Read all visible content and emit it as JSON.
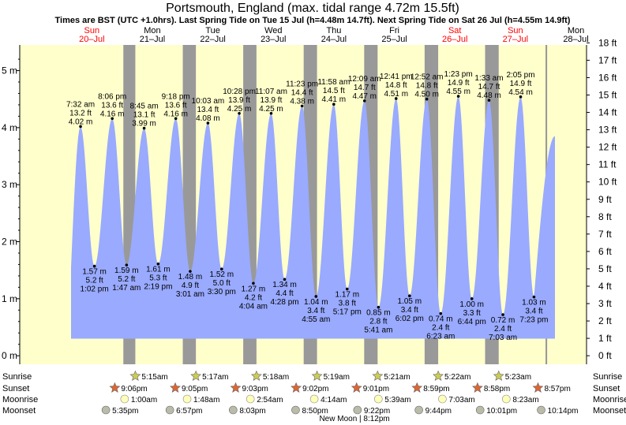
{
  "chart_data": {
    "type": "area",
    "title": "Portsmouth, England (max. tidal range 4.72m 15.5ft)",
    "subtitle": "Times are BST (UTC +1.0hrs). Last Spring Tide on Tue 15 Jul (h=4.48m 14.7ft). Next Spring Tide on Sat 26 Jul (h=4.55m 14.9ft)",
    "ylabel_left_unit": "m",
    "ylabel_right_unit": "ft",
    "ylim_m": [
      -0.15,
      5.45
    ],
    "y_ticks_m": [
      "0 m",
      "1 m",
      "2 m",
      "3 m",
      "4 m",
      "5 m"
    ],
    "y_ticks_ft": [
      "0 ft",
      "1 ft",
      "2 ft",
      "3 ft",
      "4 ft",
      "5 ft",
      "6 ft",
      "7 ft",
      "8 ft",
      "9 ft",
      "10 ft",
      "11 ft",
      "12 ft",
      "13 ft",
      "14 ft",
      "15 ft",
      "16 ft",
      "17 ft",
      "18 ft"
    ],
    "days": [
      {
        "dow": "Sun",
        "date": "20–Jul"
      },
      {
        "dow": "Mon",
        "date": "21–Jul"
      },
      {
        "dow": "Tue",
        "date": "22–Jul"
      },
      {
        "dow": "Wed",
        "date": "23–Jul"
      },
      {
        "dow": "Thu",
        "date": "24–Jul"
      },
      {
        "dow": "Fri",
        "date": "25–Jul"
      },
      {
        "dow": "Sat",
        "date": "26–Jul"
      },
      {
        "dow": "Sun",
        "date": "27–Jul"
      },
      {
        "dow": "Mon",
        "date": "28–Jul"
      }
    ],
    "start_level_m": 1.55,
    "end_level_m": 3.85,
    "extremes": [
      {
        "type": "high",
        "day": 0,
        "hour": 7.53,
        "m": 4.02,
        "time": "7:32 am",
        "h_m": "4.02 m",
        "h_ft": "13.2 ft"
      },
      {
        "type": "low",
        "day": 0,
        "hour": 13.03,
        "m": 1.57,
        "time": "1:02 pm",
        "h_m": "1.57 m",
        "h_ft": "5.2 ft"
      },
      {
        "type": "high",
        "day": 0,
        "hour": 20.1,
        "m": 4.16,
        "time": "8:06 pm",
        "h_m": "4.16 m",
        "h_ft": "13.6 ft"
      },
      {
        "type": "low",
        "day": 1,
        "hour": 1.78,
        "m": 1.59,
        "time": "1:47 am",
        "h_m": "1.59 m",
        "h_ft": "5.2 ft"
      },
      {
        "type": "high",
        "day": 1,
        "hour": 8.75,
        "m": 3.99,
        "time": "8:45 am",
        "h_m": "3.99 m",
        "h_ft": "13.1 ft"
      },
      {
        "type": "low",
        "day": 1,
        "hour": 14.32,
        "m": 1.61,
        "time": "2:19 pm",
        "h_m": "1.61 m",
        "h_ft": "5.3 ft"
      },
      {
        "type": "high",
        "day": 1,
        "hour": 21.3,
        "m": 4.16,
        "time": "9:18 pm",
        "h_m": "4.16 m",
        "h_ft": "13.6 ft"
      },
      {
        "type": "low",
        "day": 2,
        "hour": 3.02,
        "m": 1.48,
        "time": "3:01 am",
        "h_m": "1.48 m",
        "h_ft": "4.9 ft"
      },
      {
        "type": "high",
        "day": 2,
        "hour": 10.05,
        "m": 4.08,
        "time": "10:03 am",
        "h_m": "4.08 m",
        "h_ft": "13.4 ft"
      },
      {
        "type": "low",
        "day": 2,
        "hour": 15.5,
        "m": 1.52,
        "time": "3:30 pm",
        "h_m": "1.52 m",
        "h_ft": "5.0 ft"
      },
      {
        "type": "high",
        "day": 2,
        "hour": 22.47,
        "m": 4.25,
        "time": "10:28 pm",
        "h_m": "4.25 m",
        "h_ft": "13.9 ft"
      },
      {
        "type": "low",
        "day": 3,
        "hour": 4.07,
        "m": 1.27,
        "time": "4:04 am",
        "h_m": "1.27 m",
        "h_ft": "4.2 ft"
      },
      {
        "type": "high",
        "day": 3,
        "hour": 11.12,
        "m": 4.25,
        "time": "11:07 am",
        "h_m": "4.25 m",
        "h_ft": "13.9 ft"
      },
      {
        "type": "low",
        "day": 3,
        "hour": 16.47,
        "m": 1.34,
        "time": "4:28 pm",
        "h_m": "1.34 m",
        "h_ft": "4.4 ft"
      },
      {
        "type": "high",
        "day": 3,
        "hour": 23.38,
        "m": 4.38,
        "time": "11:23 pm",
        "h_m": "4.38 m",
        "h_ft": "14.4 ft"
      },
      {
        "type": "low",
        "day": 4,
        "hour": 4.92,
        "m": 1.04,
        "time": "4:55 am",
        "h_m": "1.04 m",
        "h_ft": "3.4 ft"
      },
      {
        "type": "high",
        "day": 4,
        "hour": 11.97,
        "m": 4.41,
        "time": "11:58 am",
        "h_m": "4.41 m",
        "h_ft": "14.5 ft"
      },
      {
        "type": "low",
        "day": 4,
        "hour": 17.28,
        "m": 1.17,
        "time": "5:17 pm",
        "h_m": "1.17 m",
        "h_ft": "3.8 ft"
      },
      {
        "type": "high",
        "day": 5,
        "hour": 0.15,
        "m": 4.47,
        "time": "12:09 am",
        "h_m": "4.47 m",
        "h_ft": "14.7 ft"
      },
      {
        "type": "low",
        "day": 5,
        "hour": 5.68,
        "m": 0.85,
        "time": "5:41 am",
        "h_m": "0.85 m",
        "h_ft": "2.8 ft"
      },
      {
        "type": "high",
        "day": 5,
        "hour": 12.68,
        "m": 4.51,
        "time": "12:41 pm",
        "h_m": "4.51 m",
        "h_ft": "14.8 ft"
      },
      {
        "type": "low",
        "day": 5,
        "hour": 18.03,
        "m": 1.05,
        "time": "6:02 pm",
        "h_m": "1.05 m",
        "h_ft": "3.4 ft"
      },
      {
        "type": "high",
        "day": 6,
        "hour": 0.87,
        "m": 4.5,
        "time": "12:52 am",
        "h_m": "4.50 m",
        "h_ft": "14.8 ft"
      },
      {
        "type": "low",
        "day": 6,
        "hour": 6.38,
        "m": 0.74,
        "time": "6:23 am",
        "h_m": "0.74 m",
        "h_ft": "2.4 ft"
      },
      {
        "type": "high",
        "day": 6,
        "hour": 13.38,
        "m": 4.55,
        "time": "1:23 pm",
        "h_m": "4.55 m",
        "h_ft": "14.9 ft"
      },
      {
        "type": "low",
        "day": 6,
        "hour": 18.73,
        "m": 1.0,
        "time": "6:44 pm",
        "h_m": "1.00 m",
        "h_ft": "3.3 ft"
      },
      {
        "type": "high",
        "day": 7,
        "hour": 1.55,
        "m": 4.48,
        "time": "1:33 am",
        "h_m": "4.48 m",
        "h_ft": "14.7 ft"
      },
      {
        "type": "low",
        "day": 7,
        "hour": 7.05,
        "m": 0.72,
        "time": "7:03 am",
        "h_m": "0.72 m",
        "h_ft": "2.4 ft"
      },
      {
        "type": "high",
        "day": 7,
        "hour": 14.08,
        "m": 4.54,
        "time": "2:05 pm",
        "h_m": "4.54 m",
        "h_ft": "14.9 ft"
      },
      {
        "type": "low",
        "day": 7,
        "hour": 19.38,
        "m": 1.03,
        "time": "7:23 pm",
        "h_m": "1.03 m",
        "h_ft": "3.4 ft"
      }
    ],
    "night_shading": [
      {
        "day": 1,
        "start": 0.5,
        "end": 5.25
      },
      {
        "day": 2,
        "start": 0.08,
        "end": 5.28
      },
      {
        "day": 3,
        "start": 0.05,
        "end": 5.3
      },
      {
        "day": 4,
        "start": 0.03,
        "end": 5.32
      },
      {
        "day": 5,
        "start": 0.02,
        "end": 5.35
      },
      {
        "day": 6,
        "start": 0.0,
        "end": 5.37
      },
      {
        "day": 7,
        "start": -0.02,
        "end": 5.38
      },
      {
        "day": 8,
        "start": -0.05,
        "end": 0.6
      }
    ],
    "astro_rows": [
      {
        "label": "Sunrise",
        "kind": "sunrise"
      },
      {
        "label": "Sunset",
        "kind": "sunset"
      },
      {
        "label": "Moonrise",
        "kind": "moonrise"
      },
      {
        "label": "Moonset",
        "kind": "moonset"
      }
    ],
    "sunrise": [
      {
        "day": 1,
        "hour": 5.25,
        "time": "5:15am"
      },
      {
        "day": 2,
        "hour": 5.28,
        "time": "5:17am"
      },
      {
        "day": 3,
        "hour": 5.3,
        "time": "5:18am"
      },
      {
        "day": 4,
        "hour": 5.32,
        "time": "5:19am"
      },
      {
        "day": 5,
        "hour": 5.35,
        "time": "5:21am"
      },
      {
        "day": 6,
        "hour": 5.37,
        "time": "5:22am"
      },
      {
        "day": 7,
        "hour": 5.38,
        "time": "5:23am"
      }
    ],
    "sunset": [
      {
        "day": 1,
        "hour": -2.9,
        "time": "9:06pm"
      },
      {
        "day": 2,
        "hour": -2.92,
        "time": "9:05pm"
      },
      {
        "day": 3,
        "hour": -2.95,
        "time": "9:03pm"
      },
      {
        "day": 4,
        "hour": -2.97,
        "time": "9:02pm"
      },
      {
        "day": 5,
        "hour": -2.98,
        "time": "9:01pm"
      },
      {
        "day": 6,
        "hour": -3.02,
        "time": "8:59pm"
      },
      {
        "day": 7,
        "hour": -3.03,
        "time": "8:58pm"
      },
      {
        "day": 8,
        "hour": -3.05,
        "time": "8:57pm"
      }
    ],
    "moonrise": [
      {
        "day": 1,
        "hour": 1.0,
        "time": "1:00am"
      },
      {
        "day": 2,
        "hour": 1.8,
        "time": "1:48am"
      },
      {
        "day": 3,
        "hour": 2.9,
        "time": "2:54am"
      },
      {
        "day": 4,
        "hour": 4.23,
        "time": "4:14am"
      },
      {
        "day": 5,
        "hour": 5.65,
        "time": "5:39am"
      },
      {
        "day": 6,
        "hour": 7.05,
        "time": "7:03am"
      },
      {
        "day": 7,
        "hour": 8.38,
        "time": "8:23am"
      }
    ],
    "moonset": [
      {
        "day": 0,
        "hour": 17.58,
        "time": "5:35pm"
      },
      {
        "day": 1,
        "hour": 18.95,
        "time": "6:57pm"
      },
      {
        "day": 2,
        "hour": 20.05,
        "time": "8:03pm"
      },
      {
        "day": 3,
        "hour": 20.83,
        "time": "8:50pm"
      },
      {
        "day": 4,
        "hour": 21.37,
        "time": "9:22pm"
      },
      {
        "day": 5,
        "hour": 21.73,
        "time": "9:44pm"
      },
      {
        "day": 6,
        "hour": 22.02,
        "time": "10:01pm"
      },
      {
        "day": 7,
        "hour": 22.23,
        "time": "10:14pm"
      }
    ],
    "moon_phase": {
      "day": 4,
      "hour": 20.2,
      "text": "New Moon | 8:12pm"
    }
  },
  "colors": {
    "day_bg": "#ffffcc",
    "night_bg": "#999999",
    "water": "#99aaff",
    "weekend_text": "#ff0000",
    "text": "#000000",
    "sun_star": "#cccc55",
    "sunset_star": "#dd6633",
    "moonrise_disc": "#ffffbb",
    "moonset_disc": "#bbbbaa"
  }
}
